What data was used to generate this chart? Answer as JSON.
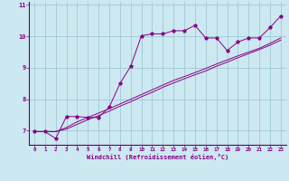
{
  "xlabel": "Windchill (Refroidissement éolien,°C)",
  "bg_color": "#cce8f0",
  "line_color": "#880088",
  "grid_color": "#99c4d0",
  "axis_color": "#660066",
  "xlim": [
    -0.5,
    23.5
  ],
  "ylim": [
    6.55,
    11.1
  ],
  "xticks": [
    0,
    1,
    2,
    3,
    4,
    5,
    6,
    7,
    8,
    9,
    10,
    11,
    12,
    13,
    14,
    15,
    16,
    17,
    18,
    19,
    20,
    21,
    22,
    23
  ],
  "yticks": [
    7,
    8,
    9,
    10,
    11
  ],
  "s1_x": [
    0,
    1,
    2,
    3,
    4,
    5,
    6,
    7,
    8,
    9,
    10,
    11,
    12,
    13,
    14,
    15,
    16,
    17,
    18,
    19,
    20,
    21,
    22,
    23
  ],
  "s1_y": [
    6.97,
    6.97,
    6.75,
    7.45,
    7.45,
    7.42,
    7.42,
    7.75,
    8.5,
    9.05,
    10.02,
    10.08,
    10.08,
    10.18,
    10.18,
    10.35,
    9.95,
    9.95,
    9.55,
    9.82,
    9.95,
    9.95,
    10.28,
    10.65
  ],
  "s2_x": [
    0,
    2,
    3,
    4,
    5,
    6,
    7,
    8,
    9,
    10,
    11,
    12,
    13,
    14,
    15,
    16,
    17,
    18,
    19,
    20,
    21,
    22,
    23
  ],
  "s2_y": [
    6.97,
    6.97,
    7.05,
    7.2,
    7.35,
    7.48,
    7.62,
    7.78,
    7.92,
    8.08,
    8.22,
    8.38,
    8.52,
    8.65,
    8.78,
    8.9,
    9.05,
    9.18,
    9.32,
    9.45,
    9.58,
    9.72,
    9.88
  ],
  "s3_x": [
    0,
    2,
    3,
    4,
    5,
    6,
    7,
    8,
    9,
    10,
    11,
    12,
    13,
    14,
    15,
    16,
    17,
    18,
    19,
    20,
    21,
    22,
    23
  ],
  "s3_y": [
    6.97,
    6.97,
    7.1,
    7.28,
    7.42,
    7.56,
    7.7,
    7.85,
    8.0,
    8.15,
    8.3,
    8.45,
    8.6,
    8.72,
    8.85,
    8.98,
    9.12,
    9.25,
    9.38,
    9.5,
    9.62,
    9.78,
    9.95
  ]
}
